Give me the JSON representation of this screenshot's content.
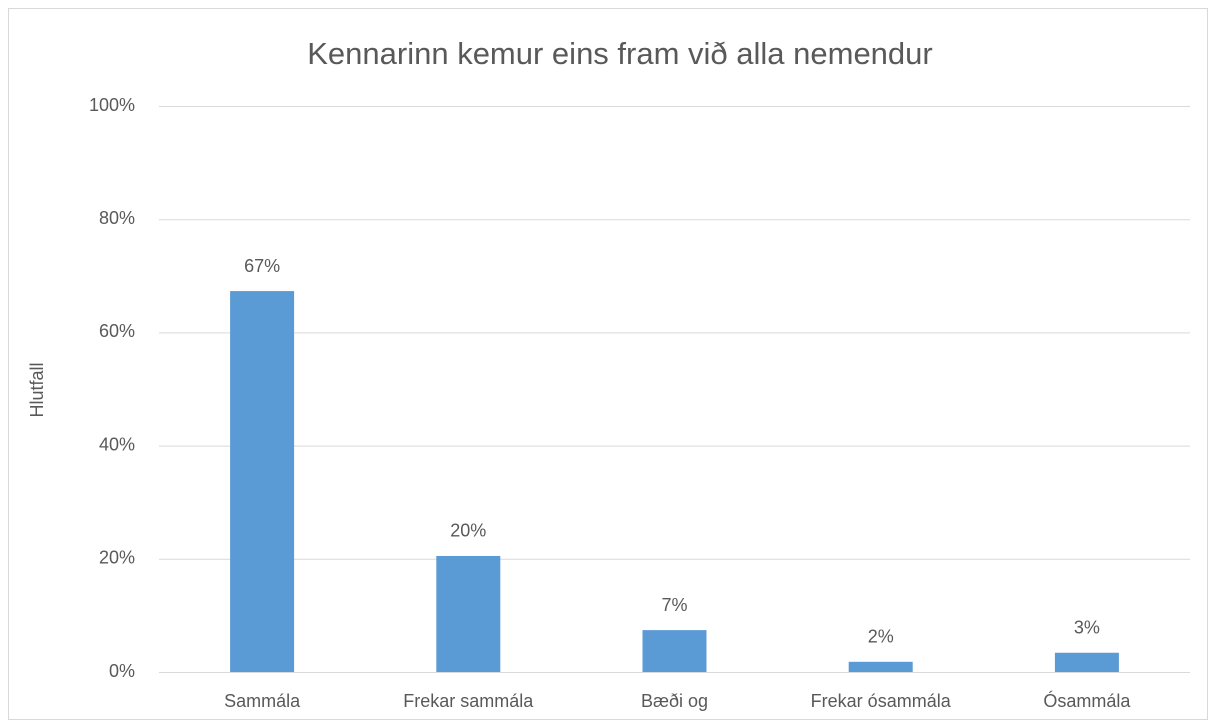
{
  "chart_data": {
    "type": "bar",
    "title": "Kennarinn kemur eins fram við alla nemendur",
    "y_label": "Hlutfall",
    "categories": [
      "Sammála",
      "Frekar sammála",
      "Bæði og",
      "Frekar ósammála",
      "Ósammála"
    ],
    "values": [
      67.3,
      20.5,
      7.4,
      1.8,
      3.4
    ],
    "value_labels": [
      "67%",
      "20%",
      "7%",
      "2%",
      "3%"
    ],
    "color": "#5b9bd5",
    "ylim": [
      0,
      100
    ],
    "yticks": [
      {
        "value": 0,
        "label": "0%"
      },
      {
        "value": 20,
        "label": "20%"
      },
      {
        "value": 40,
        "label": "40%"
      },
      {
        "value": 60,
        "label": "60%"
      },
      {
        "value": 80,
        "label": "80%"
      },
      {
        "value": 100,
        "label": "100%"
      }
    ],
    "grid": true
  }
}
